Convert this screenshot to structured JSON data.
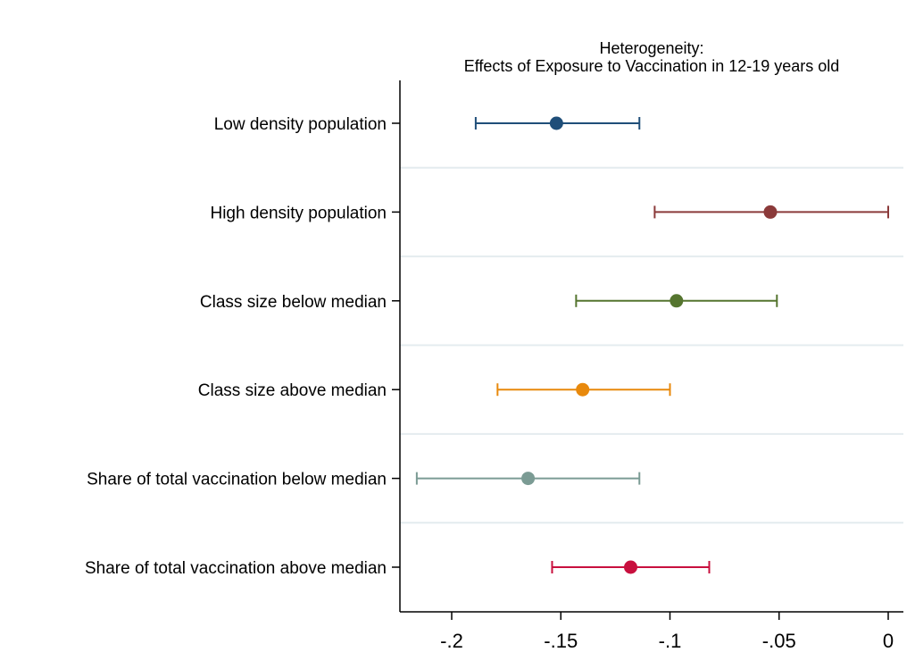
{
  "chart_data": {
    "type": "scatter",
    "title": "Heterogeneity:",
    "subtitle": "Effects of Exposure to Vaccination in 12-19 years old",
    "xlabel": "",
    "ylabel": "",
    "xlim": [
      -0.222,
      0.007
    ],
    "grid": "horizontal",
    "x_ticks": [
      {
        "value": -0.2,
        "label": "-.2"
      },
      {
        "value": -0.15,
        "label": "-.15"
      },
      {
        "value": -0.1,
        "label": "-.1"
      },
      {
        "value": -0.05,
        "label": "-.05"
      },
      {
        "value": 0,
        "label": "0"
      }
    ],
    "series": [
      {
        "label": "Low density population",
        "estimate": -0.152,
        "ci_low": -0.189,
        "ci_high": -0.114,
        "color": "#1f4e79"
      },
      {
        "label": "High density population",
        "estimate": -0.054,
        "ci_low": -0.107,
        "ci_high": 0.0,
        "color": "#8b3a3a"
      },
      {
        "label": "Class size below median",
        "estimate": -0.097,
        "ci_low": -0.143,
        "ci_high": -0.051,
        "color": "#55752f"
      },
      {
        "label": "Class size above median",
        "estimate": -0.14,
        "ci_low": -0.179,
        "ci_high": -0.1,
        "color": "#e8890c"
      },
      {
        "label": "Share of total vaccination below median",
        "estimate": -0.165,
        "ci_low": -0.216,
        "ci_high": -0.114,
        "color": "#7b9b94"
      },
      {
        "label": "Share of total vaccination above median",
        "estimate": -0.118,
        "ci_low": -0.154,
        "ci_high": -0.082,
        "color": "#c8103e"
      }
    ]
  }
}
